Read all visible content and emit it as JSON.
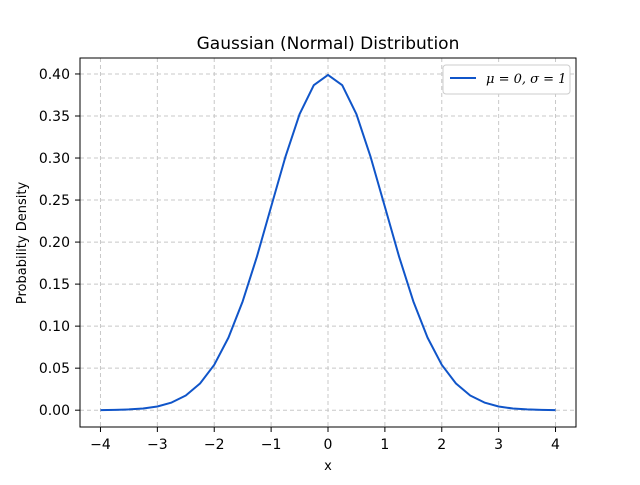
{
  "chart_data": {
    "type": "line",
    "title": "Gaussian (Normal) Distribution",
    "xlabel": "x",
    "ylabel": "Probability Density",
    "xlim": [
      -4.36,
      4.36
    ],
    "ylim": [
      -0.02,
      0.419
    ],
    "x_ticks": [
      -4,
      -3,
      -2,
      -1,
      0,
      1,
      2,
      3,
      4
    ],
    "x_tick_labels": [
      "−4",
      "−3",
      "−2",
      "−1",
      "0",
      "1",
      "2",
      "3",
      "4"
    ],
    "y_ticks": [
      0.0,
      0.05,
      0.1,
      0.15,
      0.2,
      0.25,
      0.3,
      0.35,
      0.4
    ],
    "y_tick_labels": [
      "0.00",
      "0.05",
      "0.10",
      "0.15",
      "0.20",
      "0.25",
      "0.30",
      "0.35",
      "0.40"
    ],
    "grid": true,
    "grid_style": "dashed",
    "legend_position": "top-right",
    "series": [
      {
        "name": "μ = 0, σ = 1",
        "color": "#1055c9",
        "x": [
          -4.0,
          -3.75,
          -3.5,
          -3.25,
          -3.0,
          -2.75,
          -2.5,
          -2.25,
          -2.0,
          -1.75,
          -1.5,
          -1.25,
          -1.0,
          -0.75,
          -0.5,
          -0.25,
          0.0,
          0.25,
          0.5,
          0.75,
          1.0,
          1.25,
          1.5,
          1.75,
          2.0,
          2.25,
          2.5,
          2.75,
          3.0,
          3.25,
          3.5,
          3.75,
          4.0
        ],
        "y": [
          0.0001,
          0.0004,
          0.0009,
          0.002,
          0.0044,
          0.0091,
          0.0175,
          0.0317,
          0.054,
          0.0863,
          0.1295,
          0.1826,
          0.242,
          0.3011,
          0.3521,
          0.3867,
          0.3989,
          0.3867,
          0.3521,
          0.3011,
          0.242,
          0.1826,
          0.1295,
          0.0863,
          0.054,
          0.0317,
          0.0175,
          0.0091,
          0.0044,
          0.002,
          0.0009,
          0.0004,
          0.0001
        ]
      }
    ]
  }
}
